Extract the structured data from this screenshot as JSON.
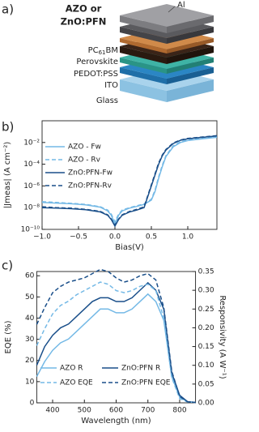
{
  "panels": [
    "a)",
    "b)",
    "c)"
  ],
  "diagram": {
    "top_label": [
      "AZO or",
      "ZnO:PFN"
    ],
    "layers": [
      "Al",
      [
        "PC",
        "61",
        "BM"
      ],
      "Perovskite",
      "PEDOT:PSS",
      "ITO",
      "Glass"
    ]
  },
  "chart_data": [
    {
      "type": "line",
      "ylog": true,
      "grid": false,
      "legend": "upper left",
      "xlabel": "Bias(V)",
      "ylabel": "|Jmeas| (A cm⁻²)",
      "xlim": [
        -1,
        1.4
      ],
      "xticks": [
        {
          "value": -1,
          "label": "−1.0"
        },
        {
          "value": -0.5,
          "label": "−0.5"
        },
        {
          "value": 0,
          "label": "0.0"
        },
        {
          "value": 0.5,
          "label": "0.5"
        },
        {
          "value": 1,
          "label": "1.0"
        }
      ],
      "ylim": [
        1e-10,
        1
      ],
      "yticks": [
        {
          "value": 1e-10,
          "label": "10⁻¹⁰"
        },
        {
          "value": 1e-08,
          "label": "10⁻⁸"
        },
        {
          "value": 1e-06,
          "label": "10⁻⁶"
        },
        {
          "value": 0.0001,
          "label": "10⁻⁴"
        },
        {
          "value": 0.01,
          "label": "10⁻²"
        }
      ],
      "x": [
        -1,
        -0.8,
        -0.6,
        -0.4,
        -0.2,
        -0.1,
        -0.05,
        0,
        0.05,
        0.1,
        0.2,
        0.3,
        0.4,
        0.5,
        0.55,
        0.6,
        0.65,
        0.7,
        0.8,
        0.9,
        1.0,
        1.2,
        1.4
      ],
      "series": [
        {
          "name": "AZO - Fw",
          "color": "#74b9e6",
          "style": "solid",
          "values": [
            3e-08,
            2.6e-08,
            2.3e-08,
            1.8e-08,
            1.1e-08,
            5e-09,
            2e-09,
            3e-10,
            2e-09,
            5e-09,
            9e-09,
            1.3e-08,
            2e-08,
            5e-08,
            3e-07,
            5e-06,
            6e-05,
            0.0005,
            0.004,
            0.01,
            0.015,
            0.022,
            0.03
          ]
        },
        {
          "name": "AZO - Rv",
          "color": "#74b9e6",
          "style": "dashed",
          "values": [
            3.5e-08,
            3e-08,
            2.5e-08,
            2e-08,
            1.2e-08,
            6e-09,
            2.5e-09,
            5e-10,
            2.5e-09,
            6e-09,
            1e-08,
            1.5e-08,
            2.2e-08,
            6e-08,
            4e-07,
            7e-06,
            8e-05,
            0.0006,
            0.005,
            0.012,
            0.017,
            0.025,
            0.033
          ]
        },
        {
          "name": "ZnO:PFN-Fw",
          "color": "#1a4f8a",
          "style": "solid",
          "values": [
            1e-08,
            9e-09,
            8e-09,
            6.5e-09,
            4e-09,
            2e-09,
            8e-10,
            2e-10,
            8e-10,
            2e-09,
            4e-09,
            6e-09,
            1e-08,
            1e-06,
            1e-05,
            0.0001,
            0.0006,
            0.002,
            0.008,
            0.016,
            0.022,
            0.03,
            0.04
          ]
        },
        {
          "name": "ZnO:PFN-Rv",
          "color": "#1a4f8a",
          "style": "dashed",
          "values": [
            1.2e-08,
            1e-08,
            9e-09,
            7e-09,
            4.5e-09,
            2.2e-09,
            9e-10,
            2.5e-10,
            9e-10,
            2.2e-09,
            4.5e-09,
            7e-09,
            1.2e-08,
            1.3e-06,
            1.3e-05,
            0.00013,
            0.0007,
            0.0023,
            0.009,
            0.017,
            0.024,
            0.032,
            0.043
          ]
        }
      ]
    },
    {
      "type": "line",
      "ylog": false,
      "grid": false,
      "legend": "lower left",
      "xlabel": "Wavelength (nm)",
      "ylabel": "EQE (%)",
      "y2label": "Responsivity (A W⁻¹)",
      "xlim": [
        350,
        850
      ],
      "xticks": [
        400,
        500,
        600,
        700,
        800
      ],
      "ylim": [
        0,
        62
      ],
      "yticks": [
        0,
        10,
        20,
        30,
        40,
        50,
        60
      ],
      "y2lim": [
        0,
        0.35
      ],
      "y2ticks": [
        {
          "value": 0,
          "label": "0.00"
        },
        {
          "value": 0.05,
          "label": "0.05"
        },
        {
          "value": 0.1,
          "label": "0.10"
        },
        {
          "value": 0.15,
          "label": "0.15"
        },
        {
          "value": 0.2,
          "label": "0.20"
        },
        {
          "value": 0.25,
          "label": "0.25"
        },
        {
          "value": 0.3,
          "label": "0.30"
        },
        {
          "value": 0.35,
          "label": "0.35"
        }
      ],
      "x": [
        350,
        375,
        400,
        425,
        450,
        475,
        500,
        525,
        550,
        575,
        600,
        625,
        650,
        675,
        700,
        725,
        750,
        775,
        800,
        825,
        850
      ],
      "series": [
        {
          "name": "AZO R",
          "color": "#74b9e6",
          "style": "solid",
          "axis": "y2",
          "values": [
            0.07,
            0.11,
            0.14,
            0.16,
            0.17,
            0.19,
            0.21,
            0.23,
            0.25,
            0.25,
            0.24,
            0.24,
            0.25,
            0.27,
            0.29,
            0.27,
            0.22,
            0.07,
            0.015,
            0.003,
            0.001
          ]
        },
        {
          "name": "ZnO:PFN R",
          "color": "#1a4f8a",
          "style": "solid",
          "axis": "y2",
          "values": [
            0.1,
            0.15,
            0.18,
            0.2,
            0.21,
            0.23,
            0.25,
            0.27,
            0.28,
            0.28,
            0.27,
            0.27,
            0.28,
            0.3,
            0.32,
            0.3,
            0.25,
            0.08,
            0.02,
            0.003,
            0.001
          ]
        },
        {
          "name": "AZO EQE",
          "color": "#74b9e6",
          "style": "dashed",
          "values": [
            27,
            35,
            42,
            46,
            48,
            51,
            53,
            55,
            57,
            56,
            53,
            52,
            53,
            55,
            56,
            53,
            40,
            12,
            2,
            0.4,
            0.2
          ]
        },
        {
          "name": "ZnO:PFN EQE",
          "color": "#1a4f8a",
          "style": "dashed",
          "values": [
            37,
            45,
            52,
            55,
            57,
            58,
            59,
            61,
            63,
            62,
            59,
            57,
            58,
            60,
            61,
            58,
            45,
            15,
            3,
            0.5,
            0.2
          ]
        }
      ]
    }
  ]
}
